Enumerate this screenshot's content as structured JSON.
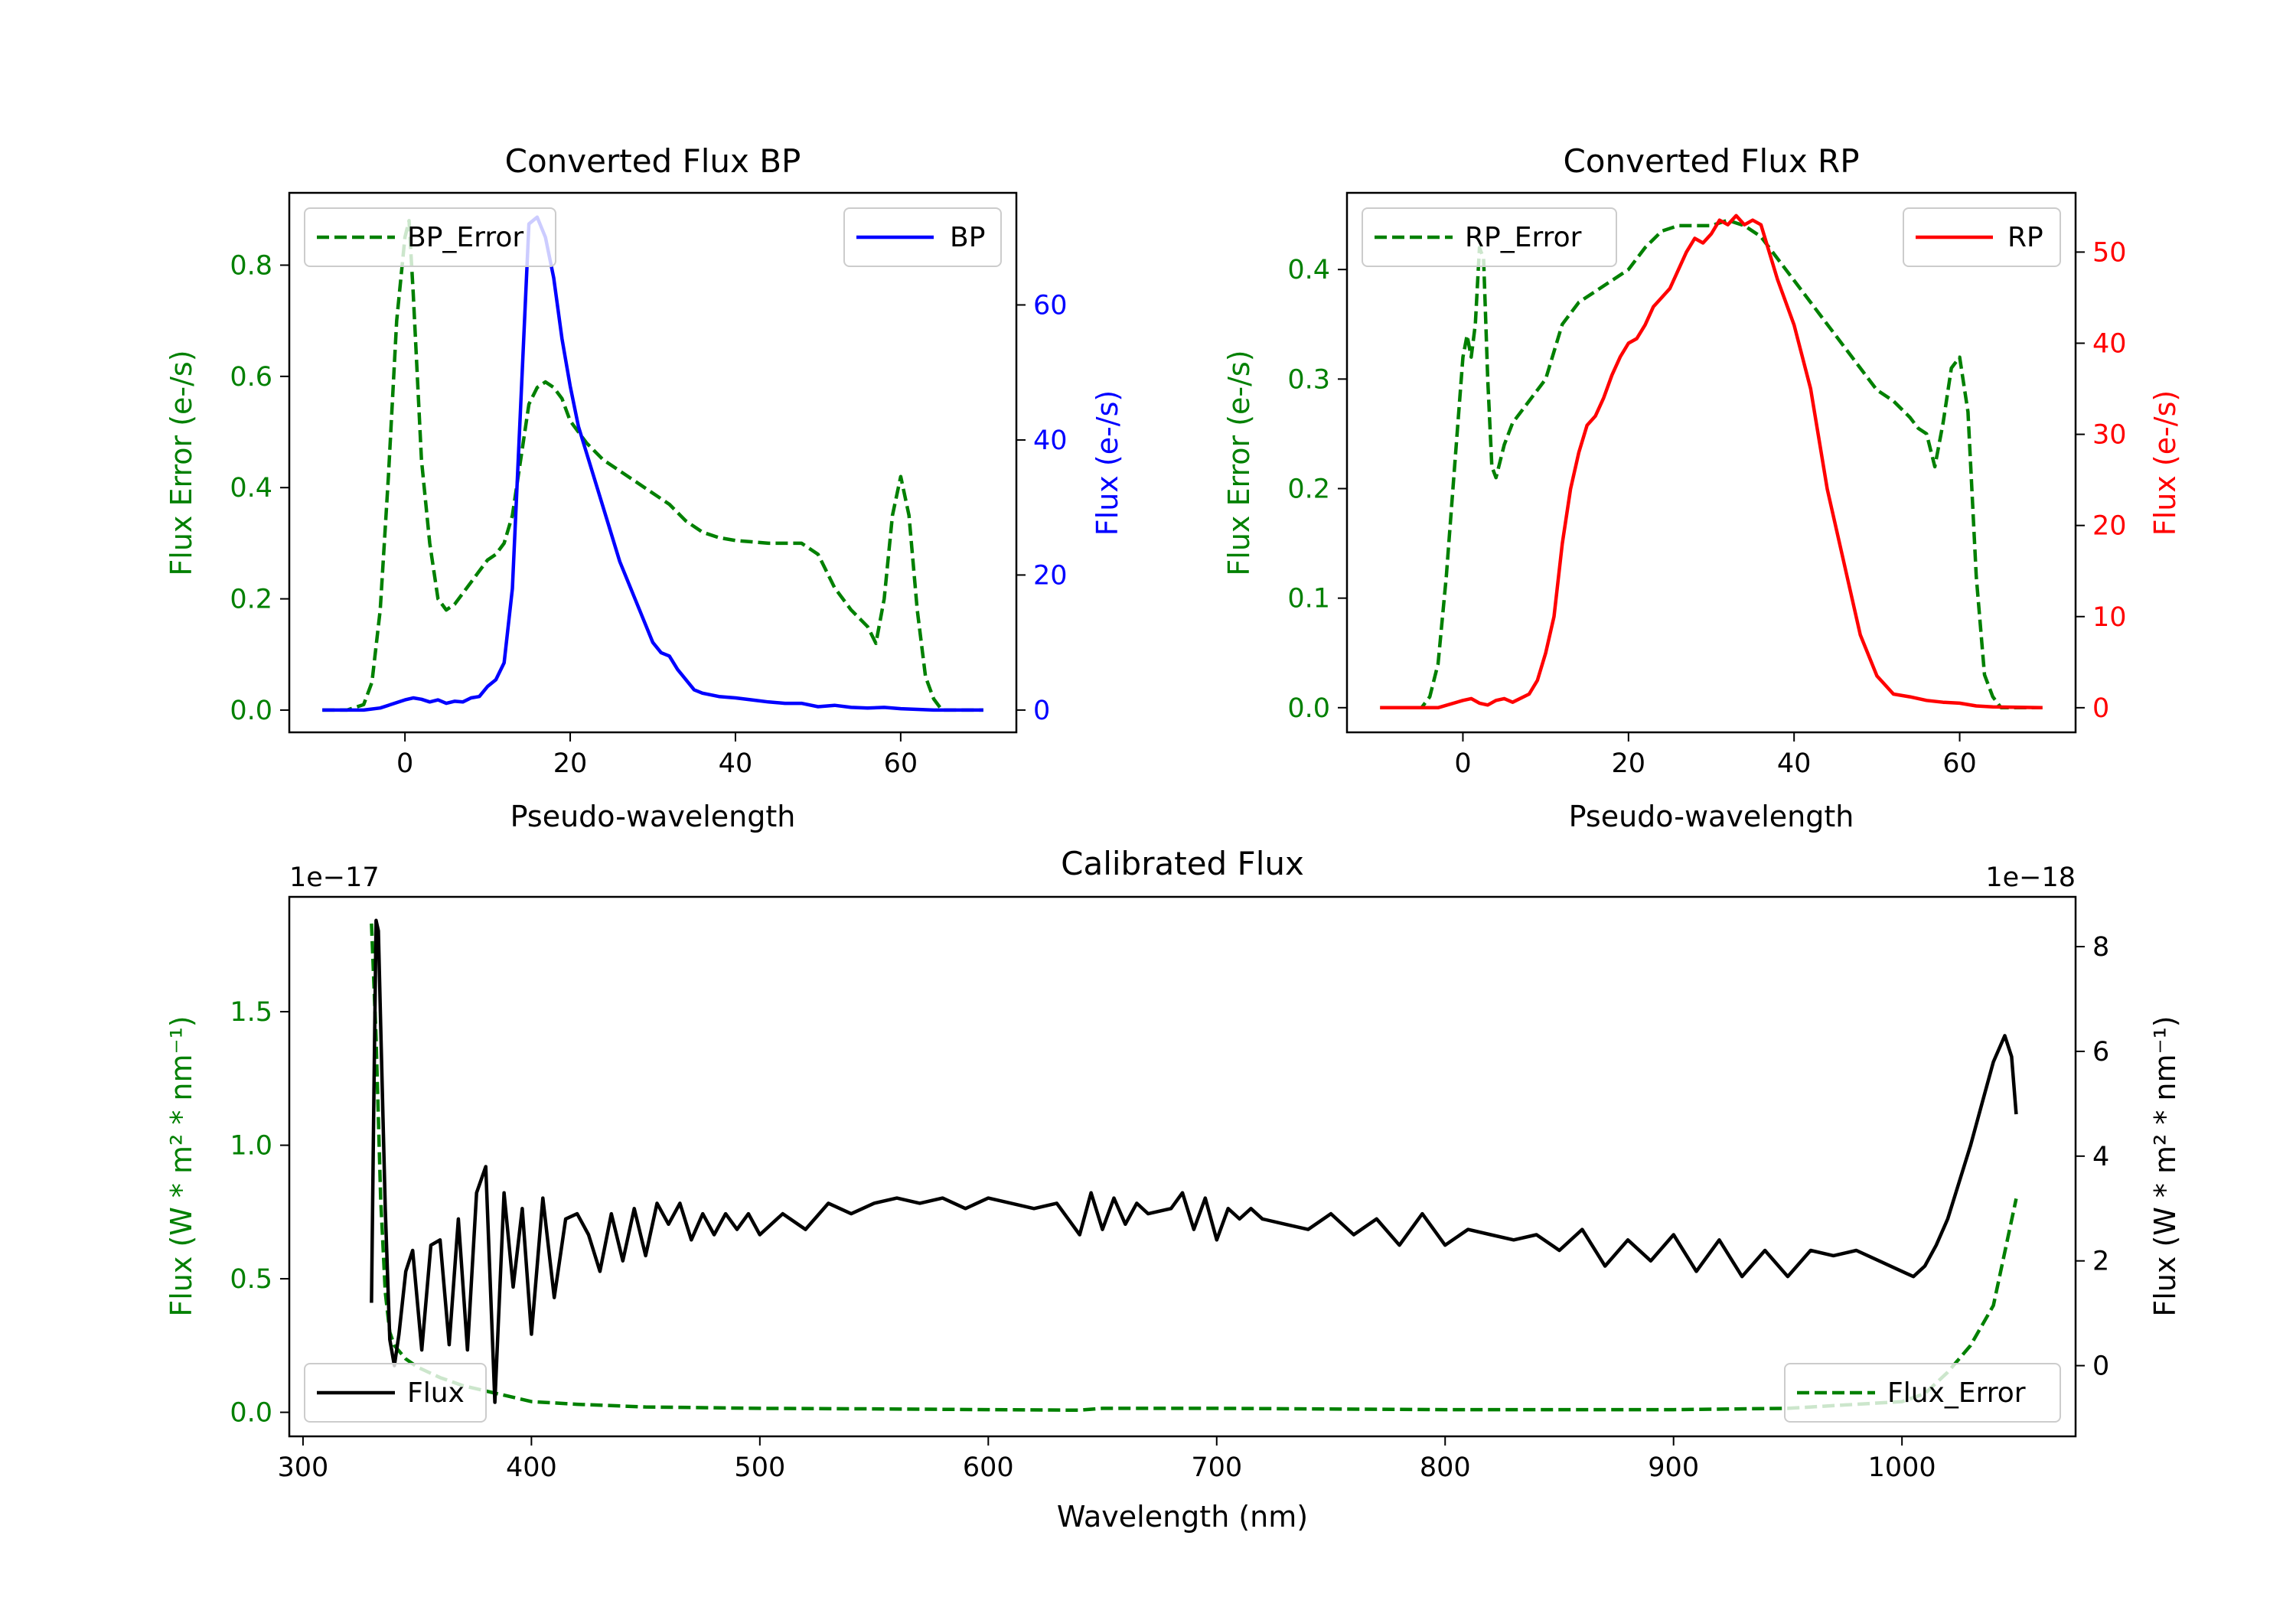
{
  "chart_data": [
    {
      "id": "bp",
      "type": "line",
      "title": "Converted Flux BP",
      "xlabel": "Pseudo-wavelength",
      "y_left_label": "Flux Error (e-/s)",
      "y_right_label": "Flux (e-/s)",
      "xlim": [
        -14,
        74
      ],
      "y_left_lim": [
        -0.04,
        0.93
      ],
      "y_right_lim": [
        -3.3,
        76.6
      ],
      "x_ticks": [
        0,
        20,
        40,
        60
      ],
      "x_tick_labels": [
        "0",
        "20",
        "40",
        "60"
      ],
      "y_left_ticks": [
        0.0,
        0.2,
        0.4,
        0.6,
        0.8
      ],
      "y_left_tick_labels": [
        "0.0",
        "0.2",
        "0.4",
        "0.6",
        "0.8"
      ],
      "y_right_ticks": [
        0,
        20,
        40,
        60
      ],
      "y_right_tick_labels": [
        "0",
        "20",
        "40",
        "60"
      ],
      "legend_left": "top-left",
      "legend_right": "top-right",
      "series": [
        {
          "name": "BP_Error",
          "axis": "left",
          "color": "#008000",
          "dash": true,
          "x": [
            -10,
            -7,
            -5,
            -4,
            -3,
            -2,
            -1,
            0,
            0.5,
            1,
            2,
            3,
            4,
            5,
            6,
            7,
            8,
            9,
            10,
            11,
            12,
            13,
            14,
            15,
            16,
            17,
            18,
            19,
            20,
            22,
            24,
            26,
            28,
            30,
            32,
            34,
            36,
            38,
            40,
            44,
            48,
            50,
            52,
            54,
            56,
            57,
            58,
            59,
            60,
            61,
            62,
            63,
            64,
            65,
            70
          ],
          "y": [
            0.0,
            0.0,
            0.01,
            0.05,
            0.18,
            0.42,
            0.7,
            0.85,
            0.88,
            0.75,
            0.45,
            0.3,
            0.2,
            0.18,
            0.19,
            0.21,
            0.23,
            0.25,
            0.27,
            0.28,
            0.3,
            0.35,
            0.45,
            0.55,
            0.58,
            0.59,
            0.58,
            0.56,
            0.52,
            0.48,
            0.45,
            0.43,
            0.41,
            0.39,
            0.37,
            0.34,
            0.32,
            0.31,
            0.305,
            0.3,
            0.3,
            0.28,
            0.22,
            0.18,
            0.15,
            0.12,
            0.2,
            0.35,
            0.42,
            0.35,
            0.18,
            0.06,
            0.02,
            0.0,
            0.0
          ]
        },
        {
          "name": "BP",
          "axis": "right",
          "color": "#0000ff",
          "dash": false,
          "x": [
            -10,
            -5,
            -3,
            0,
            1,
            2,
            3,
            4,
            5,
            6,
            7,
            8,
            9,
            10,
            11,
            12,
            13,
            14,
            15,
            16,
            17,
            18,
            19,
            20,
            21,
            22,
            24,
            26,
            28,
            30,
            31,
            32,
            33,
            34,
            35,
            36,
            38,
            40,
            42,
            44,
            46,
            48,
            50,
            52,
            54,
            56,
            58,
            60,
            62,
            64,
            66,
            70
          ],
          "y": [
            0.0,
            0.0,
            0.3,
            1.5,
            1.8,
            1.6,
            1.2,
            1.5,
            1.0,
            1.3,
            1.2,
            1.8,
            2.0,
            3.5,
            4.5,
            7.0,
            18.0,
            45.0,
            72.0,
            73.0,
            70.0,
            64.0,
            55.0,
            48.0,
            42.0,
            38.0,
            30.0,
            22.0,
            16.0,
            10.0,
            8.5,
            8.0,
            6.0,
            4.5,
            3.0,
            2.5,
            2.0,
            1.8,
            1.5,
            1.2,
            1.0,
            1.0,
            0.5,
            0.7,
            0.4,
            0.3,
            0.4,
            0.2,
            0.1,
            0.0,
            0.0,
            0.0
          ]
        }
      ]
    },
    {
      "id": "rp",
      "type": "line",
      "title": "Converted Flux RP",
      "xlabel": "Pseudo-wavelength",
      "y_left_label": "Flux Error (e-/s)",
      "y_right_label": "Flux (e-/s)",
      "xlim": [
        -14,
        74
      ],
      "y_left_lim": [
        -0.0225,
        0.47
      ],
      "y_right_lim": [
        -2.7,
        56.5
      ],
      "x_ticks": [
        0,
        20,
        40,
        60
      ],
      "x_tick_labels": [
        "0",
        "20",
        "40",
        "60"
      ],
      "y_left_ticks": [
        0.0,
        0.1,
        0.2,
        0.3,
        0.4
      ],
      "y_left_tick_labels": [
        "0.0",
        "0.1",
        "0.2",
        "0.3",
        "0.4"
      ],
      "y_right_ticks": [
        0,
        10,
        20,
        30,
        40,
        50
      ],
      "y_right_tick_labels": [
        "0",
        "10",
        "20",
        "30",
        "40",
        "50"
      ],
      "legend_left": "top-left",
      "legend_right": "top-right",
      "series": [
        {
          "name": "RP_Error",
          "axis": "left",
          "color": "#008000",
          "dash": true,
          "x": [
            -10,
            -5,
            -4,
            -3,
            -2,
            -1,
            0,
            0.5,
            1,
            1.5,
            2,
            2.5,
            3,
            3.5,
            4,
            5,
            6,
            7,
            8,
            9,
            10,
            12,
            14,
            16,
            18,
            20,
            22,
            24,
            26,
            28,
            30,
            32,
            34,
            36,
            38,
            40,
            42,
            44,
            46,
            48,
            50,
            52,
            54,
            55,
            56,
            57,
            58,
            59,
            60,
            61,
            62,
            63,
            64,
            65,
            70
          ],
          "y": [
            0.0,
            0.0,
            0.01,
            0.04,
            0.12,
            0.22,
            0.32,
            0.34,
            0.32,
            0.35,
            0.42,
            0.41,
            0.3,
            0.22,
            0.21,
            0.24,
            0.26,
            0.27,
            0.28,
            0.29,
            0.3,
            0.35,
            0.37,
            0.38,
            0.39,
            0.4,
            0.42,
            0.435,
            0.44,
            0.44,
            0.44,
            0.445,
            0.44,
            0.43,
            0.41,
            0.39,
            0.37,
            0.35,
            0.33,
            0.31,
            0.29,
            0.28,
            0.265,
            0.255,
            0.25,
            0.22,
            0.26,
            0.31,
            0.32,
            0.27,
            0.12,
            0.03,
            0.01,
            0.0,
            0.0
          ]
        },
        {
          "name": "RP",
          "axis": "right",
          "color": "#ff0000",
          "dash": false,
          "x": [
            -10,
            -3,
            0,
            1,
            2,
            3,
            4,
            5,
            6,
            8,
            9,
            10,
            11,
            12,
            13,
            14,
            15,
            16,
            17,
            18,
            19,
            20,
            21,
            22,
            23,
            24,
            25,
            26,
            27,
            28,
            29,
            30,
            31,
            32,
            33,
            34,
            35,
            36,
            37,
            38,
            40,
            42,
            44,
            46,
            48,
            50,
            52,
            54,
            56,
            58,
            60,
            62,
            64,
            70
          ],
          "y": [
            0.0,
            0.0,
            0.8,
            1.0,
            0.5,
            0.3,
            0.8,
            1.0,
            0.6,
            1.5,
            3.0,
            6.0,
            10.0,
            18.0,
            24.0,
            28.0,
            31.0,
            32.0,
            34.0,
            36.5,
            38.5,
            40.0,
            40.5,
            42.0,
            44.0,
            45.0,
            46.0,
            48.0,
            50.0,
            51.5,
            51.0,
            52.0,
            53.5,
            53.0,
            54.0,
            53.0,
            53.5,
            53.0,
            50.0,
            47.0,
            42.0,
            35.0,
            24.0,
            16.0,
            8.0,
            3.5,
            1.5,
            1.2,
            0.8,
            0.6,
            0.5,
            0.2,
            0.1,
            0.0
          ]
        }
      ]
    },
    {
      "id": "calibrated",
      "type": "line",
      "title": "Calibrated Flux",
      "xlabel": "Wavelength (nm)",
      "y_left_label": "Flux (W * m² * nm⁻¹)",
      "y_right_label": "Flux (W * m² * nm⁻¹)",
      "y_left_offset": "1e−17",
      "y_right_offset": "1e−18",
      "xlim": [
        294,
        1076
      ],
      "y_left_lim": [
        -0.09,
        1.93
      ],
      "y_right_lim": [
        -1.35,
        8.95
      ],
      "x_ticks": [
        300,
        400,
        500,
        600,
        700,
        800,
        900,
        1000
      ],
      "x_tick_labels": [
        "300",
        "400",
        "500",
        "600",
        "700",
        "800",
        "900",
        "1000"
      ],
      "y_left_ticks": [
        0.0,
        0.5,
        1.0,
        1.5
      ],
      "y_left_tick_labels": [
        "0.0",
        "0.5",
        "1.0",
        "1.5"
      ],
      "y_right_ticks": [
        0,
        2,
        4,
        6,
        8
      ],
      "y_right_tick_labels": [
        "0",
        "2",
        "4",
        "6",
        "8"
      ],
      "legend_left": "bottom-left",
      "legend_right": "bottom-right",
      "series": [
        {
          "name": "Flux_Error",
          "axis": "left",
          "color": "#008000",
          "dash": true,
          "x": [
            330,
            332,
            334,
            336,
            338,
            340,
            345,
            350,
            360,
            370,
            380,
            390,
            400,
            420,
            450,
            500,
            550,
            600,
            640,
            650,
            700,
            800,
            900,
            950,
            1000,
            1010,
            1020,
            1030,
            1040,
            1045,
            1050
          ],
          "y": [
            1.83,
            1.4,
            0.8,
            0.45,
            0.3,
            0.25,
            0.2,
            0.17,
            0.13,
            0.1,
            0.08,
            0.06,
            0.04,
            0.03,
            0.02,
            0.015,
            0.013,
            0.01,
            0.008,
            0.015,
            0.015,
            0.01,
            0.01,
            0.015,
            0.04,
            0.07,
            0.15,
            0.25,
            0.4,
            0.6,
            0.8
          ]
        },
        {
          "name": "Flux",
          "axis": "right",
          "color": "#000000",
          "dash": false,
          "x": [
            330,
            331,
            332,
            333,
            334,
            336,
            338,
            340,
            342,
            345,
            348,
            352,
            356,
            360,
            364,
            368,
            372,
            376,
            380,
            384,
            388,
            392,
            396,
            400,
            405,
            410,
            415,
            420,
            425,
            430,
            435,
            440,
            445,
            450,
            455,
            460,
            465,
            470,
            475,
            480,
            485,
            490,
            495,
            500,
            510,
            520,
            530,
            540,
            550,
            560,
            570,
            580,
            590,
            600,
            610,
            620,
            630,
            640,
            645,
            650,
            655,
            660,
            665,
            670,
            680,
            685,
            690,
            695,
            700,
            705,
            710,
            715,
            720,
            730,
            740,
            750,
            760,
            770,
            780,
            790,
            800,
            810,
            820,
            830,
            840,
            850,
            860,
            870,
            880,
            890,
            900,
            910,
            920,
            930,
            940,
            950,
            960,
            970,
            980,
            990,
            1000,
            1005,
            1010,
            1015,
            1020,
            1025,
            1030,
            1035,
            1040,
            1045,
            1048,
            1050
          ],
          "y": [
            1.2,
            5.0,
            8.5,
            8.3,
            6.5,
            3.0,
            0.5,
            0.0,
            0.6,
            1.8,
            2.2,
            0.3,
            2.3,
            2.4,
            0.4,
            2.8,
            0.3,
            3.3,
            3.8,
            -0.7,
            3.3,
            1.5,
            3.0,
            0.6,
            3.2,
            1.3,
            2.8,
            2.9,
            2.5,
            1.8,
            2.9,
            2.0,
            3.0,
            2.1,
            3.1,
            2.7,
            3.1,
            2.4,
            2.9,
            2.5,
            2.9,
            2.6,
            2.9,
            2.5,
            2.9,
            2.6,
            3.1,
            2.9,
            3.1,
            3.2,
            3.1,
            3.2,
            3.0,
            3.2,
            3.1,
            3.0,
            3.1,
            2.5,
            3.3,
            2.6,
            3.2,
            2.7,
            3.1,
            2.9,
            3.0,
            3.3,
            2.6,
            3.2,
            2.4,
            3.0,
            2.8,
            3.0,
            2.8,
            2.7,
            2.6,
            2.9,
            2.5,
            2.8,
            2.3,
            2.9,
            2.3,
            2.6,
            2.5,
            2.4,
            2.5,
            2.2,
            2.6,
            1.9,
            2.4,
            2.0,
            2.5,
            1.8,
            2.4,
            1.7,
            2.2,
            1.7,
            2.2,
            2.1,
            2.2,
            2.0,
            1.8,
            1.7,
            1.9,
            2.3,
            2.8,
            3.5,
            4.2,
            5.0,
            5.8,
            6.3,
            5.9,
            4.8
          ]
        }
      ]
    }
  ]
}
